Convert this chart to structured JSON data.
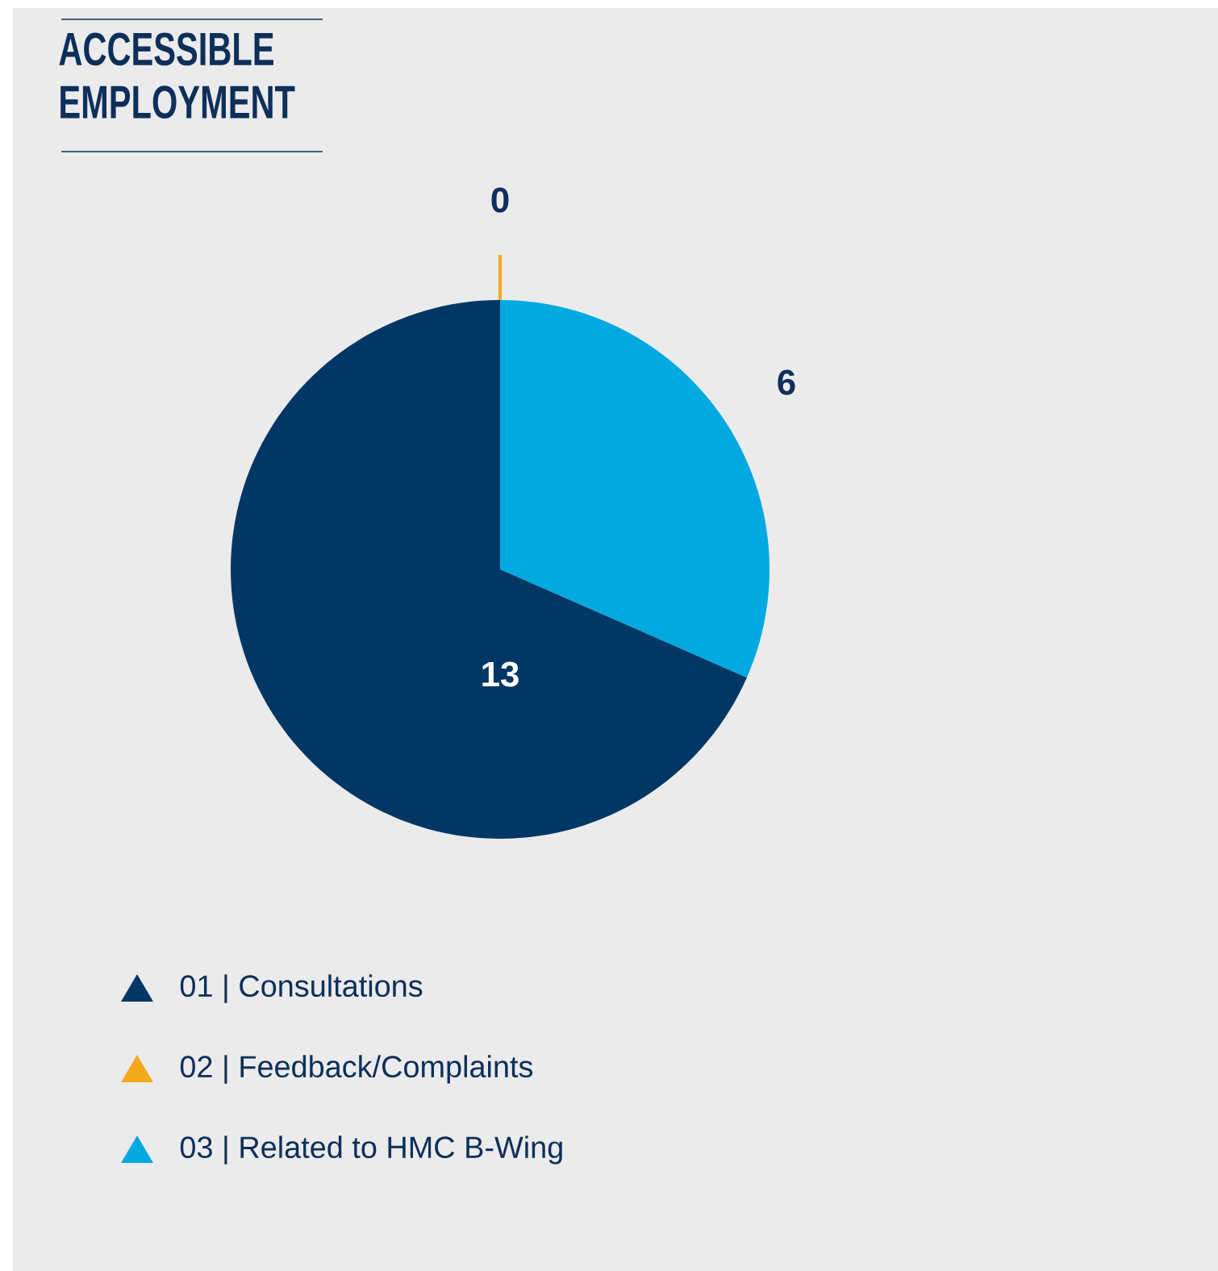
{
  "chart_data": {
    "type": "pie",
    "title": "ACCESSIBLE EMPLOYMENT",
    "categories": [
      "01 | Consultations",
      "02 | Feedback/Complaints",
      "03 | Related to HMC B-Wing"
    ],
    "values": [
      13,
      0,
      6
    ],
    "colors": [
      "#003764",
      "#f5a81c",
      "#00a9e0"
    ],
    "value_labels": [
      "13",
      "0",
      "6"
    ],
    "legend": "bottom left"
  }
}
